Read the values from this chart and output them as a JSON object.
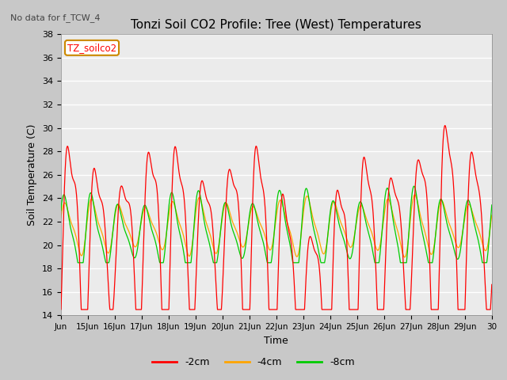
{
  "title": "Tonzi Soil CO2 Profile: Tree (West) Temperatures",
  "xlabel": "Time",
  "ylabel": "Soil Temperature (C)",
  "ylim": [
    14,
    38
  ],
  "yticks": [
    14,
    16,
    18,
    20,
    22,
    24,
    26,
    28,
    30,
    32,
    34,
    36,
    38
  ],
  "xtick_labels": [
    "Jun",
    "15Jun",
    "16Jun",
    "17Jun",
    "18Jun",
    "19Jun",
    "20Jun",
    "21Jun",
    "22Jun",
    "23Jun",
    "24Jun",
    "25Jun",
    "26Jun",
    "27Jun",
    "28Jun",
    "29Jun",
    "30"
  ],
  "no_data_text": "No data for f_TCW_4",
  "legend_box_label": "TZ_soilco2",
  "line_colors": [
    "#ff0000",
    "#ffa500",
    "#00cc00"
  ],
  "line_labels": [
    "-2cm",
    "-4cm",
    "-8cm"
  ],
  "fig_bg_color": "#c8c8c8",
  "plot_bg_color": "#ebebeb",
  "grid_color": "#ffffff"
}
